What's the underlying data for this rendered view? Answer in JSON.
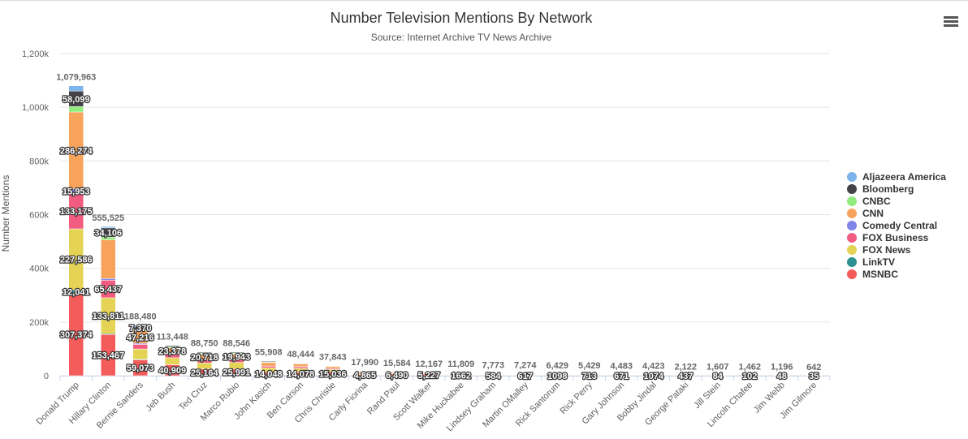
{
  "chart_data": {
    "type": "stacked_bar",
    "title": "Number Television Mentions By Network",
    "subtitle": "Source: Internet Archive TV News Archive",
    "y_label": "Number Mentions",
    "categories": [
      "Donald Trump",
      "Hillary Clinton",
      "Bernie Sanders",
      "Jeb Bush",
      "Ted Cruz",
      "Marco Rubio",
      "John Kasich",
      "Ben Carson",
      "Chris Christie",
      "Carly Fiorina",
      "Rand Paul",
      "Scott Walker",
      "Mike Huckabee",
      "Lindsey Graham",
      "Martin OMalley",
      "Rick Santorum",
      "Rick Perry",
      "Gary Johnson",
      "Bobby Jindal",
      "George Pataki",
      "Jill Stein",
      "Lincoln Chafee",
      "Jim Webb",
      "Jim Gilmore"
    ],
    "ylim": [
      0,
      1200000
    ],
    "yticks": [
      0,
      {
        "value": 200000,
        "label": "200k"
      },
      {
        "value": 400000,
        "label": "400k"
      },
      {
        "value": 600000,
        "label": "600k"
      },
      {
        "value": 800000,
        "label": "800k"
      },
      {
        "value": 1000000,
        "label": "1,000k"
      },
      {
        "value": 1200000,
        "label": "1,200k"
      }
    ],
    "grid": true,
    "legend": "right",
    "totals": [
      1079963,
      555525,
      188480,
      113448,
      88750,
      88546,
      55908,
      48444,
      37843,
      17990,
      15584,
      12167,
      11809,
      7773,
      7274,
      6429,
      5429,
      4483,
      4423,
      2122,
      1607,
      1462,
      1196,
      642
    ],
    "total_labels": [
      "1,079,963",
      "555,525",
      "188,480",
      "113,448",
      "88,750",
      "88,546",
      "55,908",
      "48,444",
      "37,843",
      "17,990",
      "15,584",
      "12,167",
      "11,809",
      "7,773",
      "7,274",
      "6,429",
      "5,429",
      "4,483",
      "4,423",
      "2,122",
      "1,607",
      "1,462",
      "1,196",
      "642"
    ],
    "series": [
      {
        "name": "Aljazeera America",
        "color": "#7cb5ec",
        "values": [
          19461,
          5000,
          6821,
          1361,
          1568,
          1112,
          1560,
          866,
          607,
          225,
          194,
          140,
          197,
          99,
          97,
          71,
          56,
          62,
          59,
          30,
          600,
          50,
          38,
          20
        ],
        "value_labels": [
          null,
          null,
          null,
          null,
          null,
          null,
          null,
          null,
          null,
          null,
          null,
          null,
          null,
          null,
          null,
          null,
          null,
          null,
          null,
          null,
          null,
          null,
          null,
          null
        ]
      },
      {
        "name": "Bloomberg",
        "color": "#434348",
        "values": [
          58099,
          34106,
          7370,
          4500,
          4000,
          3500,
          3000,
          1800,
          1000,
          500,
          500,
          350,
          400,
          300,
          350,
          250,
          200,
          200,
          160,
          90,
          73,
          100,
          70,
          20
        ],
        "value_labels": [
          "58,099",
          "34,106",
          "7,370",
          null,
          null,
          null,
          null,
          null,
          null,
          null,
          null,
          null,
          null,
          null,
          null,
          null,
          null,
          null,
          null,
          null,
          null,
          null,
          null,
          null
        ]
      },
      {
        "name": "CNBC",
        "color": "#90ed7d",
        "values": [
          20000,
          10000,
          6500,
          4000,
          3500,
          3500,
          2500,
          1800,
          1500,
          600,
          600,
          400,
          400,
          400,
          400,
          250,
          200,
          200,
          200,
          100,
          50,
          80,
          60,
          20
        ],
        "value_labels": [
          null,
          null,
          null,
          null,
          null,
          null,
          null,
          null,
          null,
          null,
          null,
          null,
          null,
          null,
          null,
          null,
          null,
          null,
          null,
          null,
          null,
          null,
          null,
          null
        ]
      },
      {
        "name": "CNN",
        "color": "#f7a35c",
        "values": [
          286274,
          144704,
          47216,
          23378,
          20718,
          19943,
          13000,
          10000,
          7000,
          4000,
          3000,
          2200,
          3000,
          2500,
          3000,
          1700,
          1500,
          1300,
          1100,
          550,
          400,
          600,
          500,
          170
        ],
        "value_labels": [
          "286,274",
          null,
          "47,216",
          "23,378",
          "20,718",
          "19,943",
          null,
          null,
          null,
          null,
          null,
          null,
          null,
          null,
          null,
          null,
          null,
          null,
          null,
          null,
          null,
          null,
          null,
          null
        ]
      },
      {
        "name": "Comedy Central",
        "color": "#8085e9",
        "values": [
          15953,
          6000,
          4000,
          1500,
          1200,
          1000,
          500,
          600,
          500,
          200,
          200,
          100,
          100,
          60,
          80,
          40,
          40,
          30,
          20,
          10,
          20,
          20,
          20,
          5
        ],
        "value_labels": [
          "15,953",
          null,
          null,
          null,
          null,
          null,
          null,
          null,
          null,
          null,
          null,
          null,
          null,
          null,
          null,
          null,
          null,
          null,
          null,
          null,
          null,
          null,
          null,
          null
        ]
      },
      {
        "name": "FOX Business",
        "color": "#f15c80",
        "values": [
          133175,
          65437,
          17000,
          12000,
          10000,
          10000,
          6000,
          6000,
          4000,
          2500,
          1500,
          1200,
          2000,
          1300,
          900,
          1000,
          900,
          700,
          600,
          300,
          80,
          150,
          150,
          120
        ],
        "value_labels": [
          "133,175",
          "65,437",
          null,
          null,
          null,
          null,
          null,
          null,
          null,
          null,
          null,
          null,
          null,
          null,
          null,
          null,
          null,
          null,
          null,
          null,
          null,
          null,
          null,
          null
        ]
      },
      {
        "name": "FOX News",
        "color": "#e4d354",
        "values": [
          227586,
          133811,
          38000,
          25000,
          22000,
          23000,
          15000,
          13000,
          8000,
          5000,
          3000,
          2500,
          4000,
          2500,
          1800,
          2000,
          1800,
          1300,
          1200,
          600,
          200,
          350,
          300,
          250
        ],
        "value_labels": [
          "227,586",
          "133,811",
          null,
          null,
          null,
          null,
          null,
          null,
          null,
          null,
          null,
          null,
          null,
          null,
          null,
          null,
          null,
          null,
          null,
          null,
          null,
          null,
          null,
          null
        ]
      },
      {
        "name": "LinkTV",
        "color": "#2b908f",
        "values": [
          12041,
          3000,
          2500,
          800,
          600,
          500,
          300,
          300,
          200,
          100,
          100,
          50,
          50,
          30,
          30,
          20,
          20,
          20,
          10,
          5,
          100,
          10,
          10,
          2
        ],
        "value_labels": [
          "12,041",
          null,
          null,
          null,
          null,
          null,
          null,
          null,
          null,
          null,
          null,
          null,
          null,
          null,
          null,
          null,
          null,
          null,
          null,
          null,
          null,
          null,
          null,
          null
        ]
      },
      {
        "name": "MSNBC",
        "color": "#f45b5b",
        "values": [
          307374,
          153467,
          59073,
          40909,
          25164,
          25991,
          14048,
          14078,
          15036,
          4865,
          6490,
          5227,
          1662,
          584,
          617,
          1098,
          713,
          671,
          1074,
          437,
          84,
          102,
          48,
          35
        ],
        "value_labels": [
          "307,374",
          "153,467",
          "59,073",
          "40,909",
          "25,164",
          "25,991",
          "14,048",
          "14,078",
          "15,036",
          "4,865",
          "6,490",
          "5,227",
          "1662",
          "584",
          "617",
          "1098",
          "713",
          "671",
          "1074",
          "437",
          "84",
          "102",
          "48",
          "35"
        ]
      }
    ]
  }
}
